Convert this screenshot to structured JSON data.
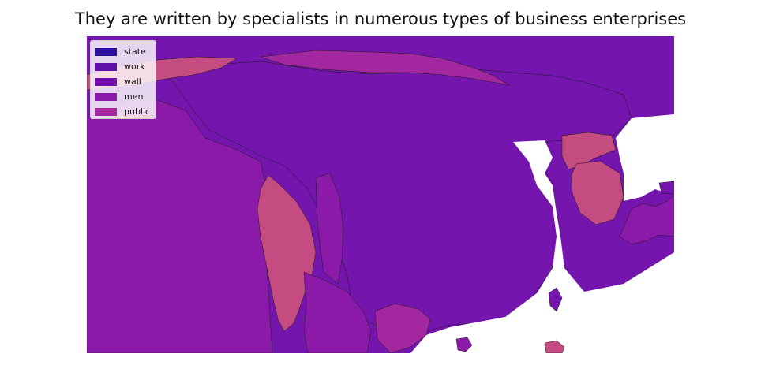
{
  "title": "They are written by specialists in numerous types of business enterprises",
  "legend": {
    "items": [
      {
        "label": "state",
        "color": "#2a0f9a"
      },
      {
        "label": "work",
        "color": "#5e10a8"
      },
      {
        "label": "wall",
        "color": "#7410ac"
      },
      {
        "label": "men",
        "color": "#8c1aa8"
      },
      {
        "label": "public",
        "color": "#a3279e"
      }
    ]
  },
  "colors": {
    "background": "#ffffff",
    "region_work": "#7416ae",
    "region_men": "#8c1aa8",
    "region_public": "#a3279e",
    "region_highlight": "#c54c80",
    "border": "#1a1a1a"
  }
}
